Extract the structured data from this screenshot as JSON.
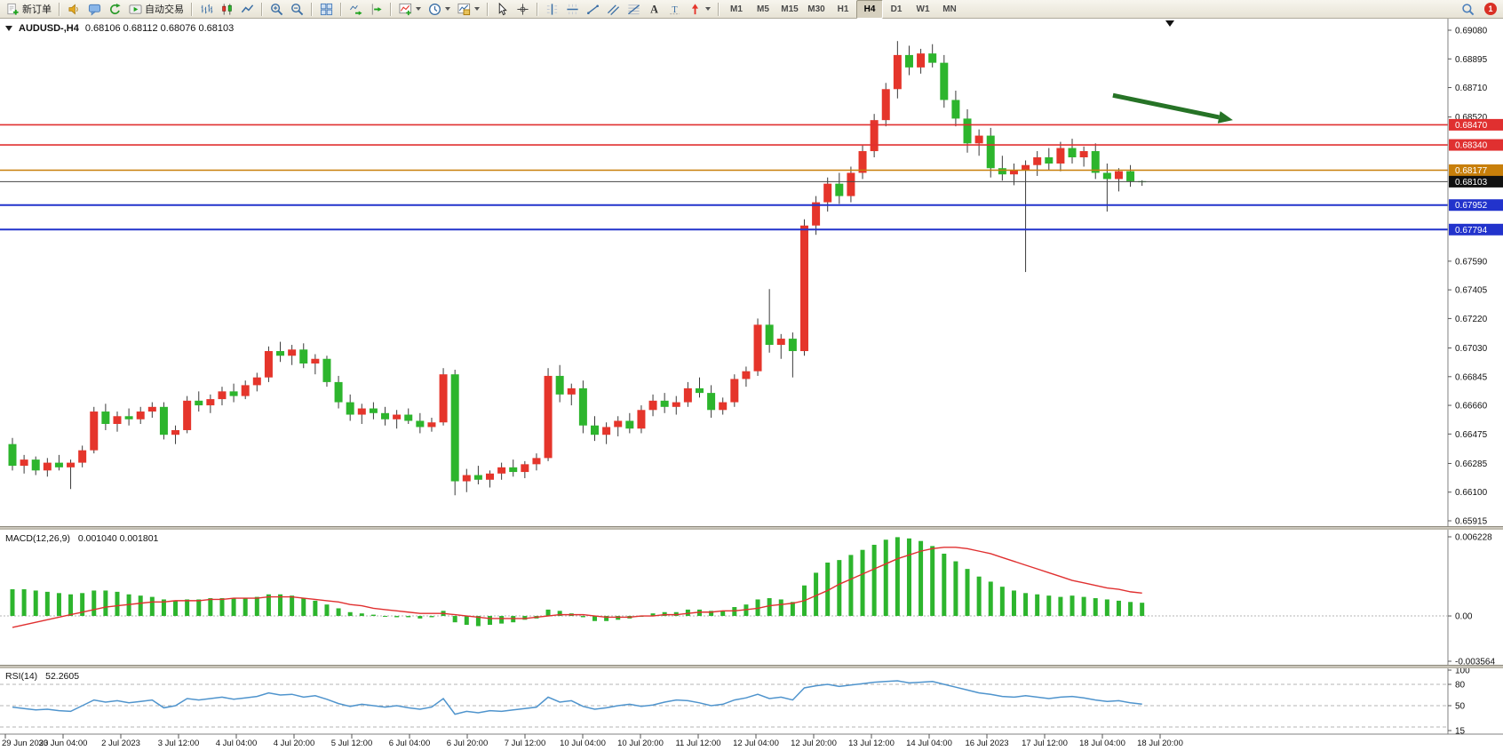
{
  "toolbar": {
    "buttons": [
      {
        "name": "new-order-button",
        "icon": "new-order",
        "label": "新订单"
      },
      {
        "sep": true
      },
      {
        "name": "news-button",
        "icon": "sound"
      },
      {
        "name": "chat-button",
        "icon": "chat"
      },
      {
        "name": "refresh-button",
        "icon": "refresh"
      },
      {
        "name": "autotrade-button",
        "icon": "autotrade",
        "label": "自动交易"
      },
      {
        "sep": true
      },
      {
        "name": "bar-chart-button",
        "icon": "chart-bars"
      },
      {
        "name": "candle-chart-button",
        "icon": "chart-candles"
      },
      {
        "name": "line-chart-button",
        "icon": "chart-line"
      },
      {
        "sep": true
      },
      {
        "name": "zoom-in-button",
        "icon": "zoom-in"
      },
      {
        "name": "zoom-out-button",
        "icon": "zoom-out"
      },
      {
        "sep": true
      },
      {
        "name": "tile-windows-button",
        "icon": "tile-windows"
      },
      {
        "sep": true
      },
      {
        "name": "auto-scroll-button",
        "icon": "auto-scroll"
      },
      {
        "name": "chart-shift-button",
        "icon": "chart-shift"
      },
      {
        "sep": true
      },
      {
        "name": "indicators-button",
        "icon": "indicators",
        "caret": true
      },
      {
        "name": "periods-button",
        "icon": "periods",
        "caret": true
      },
      {
        "name": "templates-button",
        "icon": "templates",
        "caret": true
      },
      {
        "sep": true
      },
      {
        "name": "cursor-button",
        "icon": "cursor"
      },
      {
        "name": "crosshair-button",
        "icon": "crosshair"
      },
      {
        "sep": true
      },
      {
        "name": "vertical-line-button",
        "icon": "vline"
      },
      {
        "name": "horizontal-line-button",
        "icon": "hline"
      },
      {
        "name": "trendline-button",
        "icon": "trendline"
      },
      {
        "name": "channel-button",
        "icon": "channel"
      },
      {
        "name": "fibonacci-button",
        "icon": "fibonacci"
      },
      {
        "name": "text-button",
        "icon": "text"
      },
      {
        "name": "label-button",
        "icon": "label"
      },
      {
        "name": "arrows-button",
        "icon": "arrows",
        "caret": true
      },
      {
        "sep": true
      }
    ],
    "timeframes": [
      {
        "label": "M1"
      },
      {
        "label": "M5"
      },
      {
        "label": "M15"
      },
      {
        "label": "M30"
      },
      {
        "label": "H1"
      },
      {
        "label": "H4",
        "active": true
      },
      {
        "label": "D1"
      },
      {
        "label": "W1"
      },
      {
        "label": "MN"
      }
    ],
    "right_badge": "1"
  },
  "chart": {
    "title": {
      "symbol": "AUDUSD-,H4",
      "ohlc": "0.68106 0.68112 0.68076 0.68103"
    }
  },
  "chart_data": {
    "type": "candlestick",
    "symbol": "AUDUSD",
    "period": "H4",
    "ylim": [
      0.65915,
      0.6908
    ],
    "price_ticks": [
      "0.69080",
      "0.68895",
      "0.68710",
      "0.68520",
      "0.67590",
      "0.67405",
      "0.67220",
      "0.67030",
      "0.66845",
      "0.66660",
      "0.66475",
      "0.66285",
      "0.66100",
      "0.65915"
    ],
    "price_tags": [
      {
        "label": "0.68470",
        "price": 0.6847,
        "color": "#e03030"
      },
      {
        "label": "0.68340",
        "price": 0.6834,
        "color": "#e03030"
      },
      {
        "label": "0.68177",
        "price": 0.68177,
        "color": "#c87f0a"
      },
      {
        "label": "0.68103",
        "price": 0.68103,
        "color": "#111111"
      },
      {
        "label": "0.67952",
        "price": 0.67952,
        "color": "#2233cc"
      },
      {
        "label": "0.67794",
        "price": 0.67794,
        "color": "#2233cc"
      }
    ],
    "object_lines": [
      {
        "name": "resistance-line-1",
        "price": 0.6847,
        "color": "#e03030",
        "width": 1.6
      },
      {
        "name": "resistance-line-2",
        "price": 0.6834,
        "color": "#e03030",
        "width": 1.6
      },
      {
        "name": "pivot-line",
        "price": 0.68177,
        "color": "#c87f0a",
        "width": 1.6
      },
      {
        "name": "bid-price-line",
        "price": 0.68103,
        "color": "#444444",
        "width": 1
      },
      {
        "name": "support-line-1",
        "price": 0.67952,
        "color": "#2233cc",
        "width": 2
      },
      {
        "name": "support-line-2",
        "price": 0.67794,
        "color": "#2233cc",
        "width": 2
      }
    ],
    "arrow": {
      "name": "trade-direction-arrow",
      "from_index": 94.5,
      "from_price": 0.6866,
      "to_index": 104.8,
      "to_price": 0.685,
      "color": "#267326",
      "width": 5
    },
    "time_labels": [
      "29 Jun 2023",
      "30 Jun 04:00",
      "2 Jul 2023",
      "3 Jul 12:00",
      "4 Jul 04:00",
      "4 Jul 20:00",
      "5 Jul 12:00",
      "6 Jul 04:00",
      "6 Jul 20:00",
      "7 Jul 12:00",
      "10 Jul 04:00",
      "10 Jul 20:00",
      "11 Jul 12:00",
      "12 Jul 04:00",
      "12 Jul 20:00",
      "13 Jul 12:00",
      "14 Jul 04:00",
      "16 Jul 2023",
      "17 Jul 12:00",
      "18 Jul 04:00",
      "18 Jul 20:00"
    ],
    "colors": {
      "up": "#e5352b",
      "down": "#2db52d",
      "wick": "#3a3a3a"
    },
    "candles": [
      [
        0.6641,
        0.6645,
        0.6624,
        0.6627
      ],
      [
        0.6627,
        0.6634,
        0.6622,
        0.6631
      ],
      [
        0.6631,
        0.6633,
        0.6621,
        0.6624
      ],
      [
        0.6624,
        0.6632,
        0.662,
        0.6629
      ],
      [
        0.6629,
        0.6634,
        0.6624,
        0.6626
      ],
      [
        0.6626,
        0.6631,
        0.6612,
        0.6629
      ],
      [
        0.6629,
        0.664,
        0.6626,
        0.6637
      ],
      [
        0.6637,
        0.6665,
        0.6635,
        0.6662
      ],
      [
        0.6662,
        0.6667,
        0.665,
        0.6654
      ],
      [
        0.6654,
        0.6662,
        0.6649,
        0.6659
      ],
      [
        0.6659,
        0.6664,
        0.6653,
        0.6657
      ],
      [
        0.6657,
        0.6665,
        0.6654,
        0.6662
      ],
      [
        0.6662,
        0.6668,
        0.6658,
        0.6665
      ],
      [
        0.6665,
        0.6668,
        0.6644,
        0.6647
      ],
      [
        0.6647,
        0.6653,
        0.6641,
        0.665
      ],
      [
        0.665,
        0.6672,
        0.6648,
        0.6669
      ],
      [
        0.6669,
        0.6675,
        0.6662,
        0.6666
      ],
      [
        0.6666,
        0.6673,
        0.6661,
        0.667
      ],
      [
        0.667,
        0.6678,
        0.6666,
        0.6675
      ],
      [
        0.6675,
        0.668,
        0.6668,
        0.6672
      ],
      [
        0.6672,
        0.6682,
        0.667,
        0.6679
      ],
      [
        0.6679,
        0.6687,
        0.6675,
        0.6684
      ],
      [
        0.6684,
        0.6704,
        0.6681,
        0.6701
      ],
      [
        0.6701,
        0.6707,
        0.6694,
        0.6698
      ],
      [
        0.6698,
        0.6705,
        0.6692,
        0.6702
      ],
      [
        0.6702,
        0.6706,
        0.669,
        0.6693
      ],
      [
        0.6693,
        0.6699,
        0.6686,
        0.6696
      ],
      [
        0.6696,
        0.6698,
        0.6678,
        0.6681
      ],
      [
        0.6681,
        0.6685,
        0.6664,
        0.6668
      ],
      [
        0.6668,
        0.6673,
        0.6656,
        0.666
      ],
      [
        0.666,
        0.6667,
        0.6654,
        0.6664
      ],
      [
        0.6664,
        0.6668,
        0.6657,
        0.6661
      ],
      [
        0.6661,
        0.6665,
        0.6653,
        0.6657
      ],
      [
        0.6657,
        0.6663,
        0.6651,
        0.666
      ],
      [
        0.666,
        0.6664,
        0.6654,
        0.6656
      ],
      [
        0.6656,
        0.6661,
        0.6648,
        0.6652
      ],
      [
        0.6652,
        0.6658,
        0.6649,
        0.6655
      ],
      [
        0.6655,
        0.669,
        0.6653,
        0.6686
      ],
      [
        0.6686,
        0.6689,
        0.6608,
        0.6617
      ],
      [
        0.6617,
        0.6625,
        0.661,
        0.6621
      ],
      [
        0.6621,
        0.6627,
        0.6615,
        0.6618
      ],
      [
        0.6618,
        0.6624,
        0.6613,
        0.6622
      ],
      [
        0.6622,
        0.6629,
        0.6618,
        0.6626
      ],
      [
        0.6626,
        0.6631,
        0.662,
        0.6623
      ],
      [
        0.6623,
        0.663,
        0.6619,
        0.6628
      ],
      [
        0.6628,
        0.6635,
        0.6624,
        0.6632
      ],
      [
        0.6632,
        0.669,
        0.663,
        0.6685
      ],
      [
        0.6685,
        0.6692,
        0.6668,
        0.6673
      ],
      [
        0.6673,
        0.668,
        0.6666,
        0.6677
      ],
      [
        0.6677,
        0.6682,
        0.6648,
        0.6653
      ],
      [
        0.6653,
        0.6659,
        0.6643,
        0.6647
      ],
      [
        0.6647,
        0.6655,
        0.6641,
        0.6652
      ],
      [
        0.6652,
        0.6659,
        0.6646,
        0.6656
      ],
      [
        0.6656,
        0.6661,
        0.6648,
        0.6651
      ],
      [
        0.6651,
        0.6666,
        0.6648,
        0.6663
      ],
      [
        0.6663,
        0.6673,
        0.6659,
        0.6669
      ],
      [
        0.6669,
        0.6674,
        0.6661,
        0.6665
      ],
      [
        0.6665,
        0.6672,
        0.666,
        0.6668
      ],
      [
        0.6668,
        0.6681,
        0.6665,
        0.6677
      ],
      [
        0.6677,
        0.6684,
        0.6671,
        0.6674
      ],
      [
        0.6674,
        0.6679,
        0.6658,
        0.6663
      ],
      [
        0.6663,
        0.6671,
        0.666,
        0.6668
      ],
      [
        0.6668,
        0.6686,
        0.6665,
        0.6683
      ],
      [
        0.6683,
        0.6691,
        0.6678,
        0.6688
      ],
      [
        0.6688,
        0.6722,
        0.6685,
        0.6718
      ],
      [
        0.6718,
        0.6741,
        0.67,
        0.6705
      ],
      [
        0.6705,
        0.6712,
        0.6696,
        0.6709
      ],
      [
        0.6709,
        0.6713,
        0.6684,
        0.6701
      ],
      [
        0.6701,
        0.6786,
        0.6698,
        0.6782
      ],
      [
        0.6782,
        0.6801,
        0.6776,
        0.6797
      ],
      [
        0.6797,
        0.6813,
        0.6791,
        0.6809
      ],
      [
        0.6809,
        0.6816,
        0.6796,
        0.6801
      ],
      [
        0.6801,
        0.682,
        0.6797,
        0.6816
      ],
      [
        0.6816,
        0.6834,
        0.6812,
        0.683
      ],
      [
        0.683,
        0.6854,
        0.6826,
        0.685
      ],
      [
        0.685,
        0.6874,
        0.6846,
        0.687
      ],
      [
        0.687,
        0.6901,
        0.6864,
        0.6892
      ],
      [
        0.6892,
        0.6898,
        0.6879,
        0.6884
      ],
      [
        0.6884,
        0.6896,
        0.688,
        0.6893
      ],
      [
        0.6893,
        0.6899,
        0.6884,
        0.6887
      ],
      [
        0.6887,
        0.6892,
        0.6858,
        0.6863
      ],
      [
        0.6863,
        0.6869,
        0.6846,
        0.6851
      ],
      [
        0.6851,
        0.6857,
        0.6829,
        0.6835
      ],
      [
        0.6835,
        0.6844,
        0.6827,
        0.684
      ],
      [
        0.684,
        0.6845,
        0.6813,
        0.6819
      ],
      [
        0.6819,
        0.6827,
        0.6811,
        0.6815
      ],
      [
        0.6815,
        0.6822,
        0.6808,
        0.6818
      ],
      [
        0.6818,
        0.6824,
        0.6752,
        0.6821
      ],
      [
        0.6821,
        0.683,
        0.6814,
        0.6826
      ],
      [
        0.6826,
        0.6832,
        0.6818,
        0.6822
      ],
      [
        0.6822,
        0.6836,
        0.6817,
        0.6832
      ],
      [
        0.6832,
        0.6838,
        0.6822,
        0.6826
      ],
      [
        0.6826,
        0.6833,
        0.682,
        0.683
      ],
      [
        0.683,
        0.6835,
        0.6812,
        0.6816
      ],
      [
        0.6816,
        0.6822,
        0.6791,
        0.6812
      ],
      [
        0.6812,
        0.6819,
        0.6804,
        0.6817
      ],
      [
        0.6817,
        0.6821,
        0.6807,
        0.68106
      ],
      [
        0.68106,
        0.68112,
        0.68076,
        0.68103
      ]
    ],
    "indicators": {
      "macd": {
        "label": "MACD(12,26,9)",
        "values_label": "0.001040 0.001801",
        "axis_labels": [
          "0.006228",
          "0.00",
          "-0.003564"
        ],
        "histogram_color": "#2db52d",
        "signal_color": "#e03030",
        "histogram": [
          0.0021,
          0.0021,
          0.002,
          0.0019,
          0.0018,
          0.0017,
          0.0018,
          0.002,
          0.002,
          0.0019,
          0.0017,
          0.0016,
          0.0015,
          0.0013,
          0.0012,
          0.0013,
          0.0013,
          0.0014,
          0.0014,
          0.0014,
          0.0014,
          0.0015,
          0.0017,
          0.0017,
          0.0016,
          0.0014,
          0.0012,
          0.0009,
          0.0006,
          0.0003,
          0.0002,
          0.0001,
          0.0,
          -0.0001,
          -0.0001,
          -0.0002,
          -0.0001,
          0.0004,
          -0.0005,
          -0.0007,
          -0.0008,
          -0.0007,
          -0.0006,
          -0.0005,
          -0.0003,
          -0.0002,
          0.0005,
          0.0004,
          0.0002,
          -0.0001,
          -0.0004,
          -0.0004,
          -0.0003,
          -0.0002,
          0.0,
          0.0002,
          0.0003,
          0.0003,
          0.0005,
          0.0005,
          0.0004,
          0.0004,
          0.0007,
          0.0009,
          0.0013,
          0.0014,
          0.0013,
          0.0011,
          0.0024,
          0.0034,
          0.0042,
          0.0044,
          0.0048,
          0.0052,
          0.0056,
          0.006,
          0.0062,
          0.0061,
          0.0059,
          0.0055,
          0.0049,
          0.0043,
          0.0037,
          0.0031,
          0.0027,
          0.0023,
          0.002,
          0.0018,
          0.0017,
          0.0016,
          0.0015,
          0.0016,
          0.0015,
          0.0014,
          0.0013,
          0.0012,
          0.0011,
          0.00104
        ],
        "signal": [
          -0.0009,
          -0.0007,
          -0.0005,
          -0.0003,
          -0.0001,
          0.0001,
          0.0003,
          0.0005,
          0.0007,
          0.0008,
          0.0009,
          0.001,
          0.0011,
          0.0011,
          0.0012,
          0.0012,
          0.0012,
          0.0013,
          0.0013,
          0.0014,
          0.0014,
          0.0014,
          0.0015,
          0.0015,
          0.0015,
          0.0014,
          0.0013,
          0.0012,
          0.0011,
          0.0009,
          0.0008,
          0.0006,
          0.0005,
          0.0004,
          0.0003,
          0.0002,
          0.0002,
          0.0002,
          0.0001,
          0.0,
          -0.0001,
          -0.0002,
          -0.0002,
          -0.0002,
          -0.0002,
          -0.0001,
          0.0,
          0.0001,
          0.0001,
          0.0001,
          0.0,
          -0.0001,
          -0.0001,
          -0.0001,
          0.0,
          0.0,
          0.0001,
          0.0001,
          0.0002,
          0.0003,
          0.0003,
          0.0004,
          0.0004,
          0.0005,
          0.0006,
          0.0008,
          0.0009,
          0.001,
          0.0012,
          0.0016,
          0.002,
          0.0025,
          0.0029,
          0.0033,
          0.0037,
          0.0041,
          0.0045,
          0.0048,
          0.0051,
          0.0053,
          0.0054,
          0.0054,
          0.0053,
          0.0051,
          0.0049,
          0.0046,
          0.0043,
          0.004,
          0.0037,
          0.0034,
          0.0031,
          0.0028,
          0.0026,
          0.0024,
          0.0022,
          0.0021,
          0.0019,
          0.0018
        ]
      },
      "rsi": {
        "label": "RSI(14)",
        "value_label": "52.2605",
        "axis_labels": [
          "100",
          "80",
          "50",
          "15"
        ],
        "levels": [
          80,
          50,
          20
        ],
        "line_color": "#4f94cd",
        "values": [
          48,
          46,
          44,
          45,
          43,
          42,
          50,
          58,
          55,
          57,
          54,
          56,
          58,
          47,
          50,
          60,
          58,
          60,
          62,
          59,
          61,
          63,
          68,
          65,
          66,
          62,
          64,
          59,
          53,
          49,
          52,
          50,
          48,
          50,
          47,
          45,
          48,
          60,
          38,
          42,
          40,
          43,
          42,
          44,
          46,
          48,
          62,
          55,
          57,
          49,
          45,
          47,
          50,
          52,
          49,
          51,
          55,
          58,
          57,
          54,
          50,
          52,
          58,
          61,
          66,
          60,
          62,
          58,
          75,
          78,
          80,
          77,
          79,
          81,
          83,
          84,
          85,
          82,
          83,
          84,
          80,
          76,
          72,
          68,
          66,
          63,
          62,
          64,
          62,
          60,
          62,
          63,
          61,
          58,
          56,
          57,
          54,
          52.26
        ]
      }
    }
  }
}
